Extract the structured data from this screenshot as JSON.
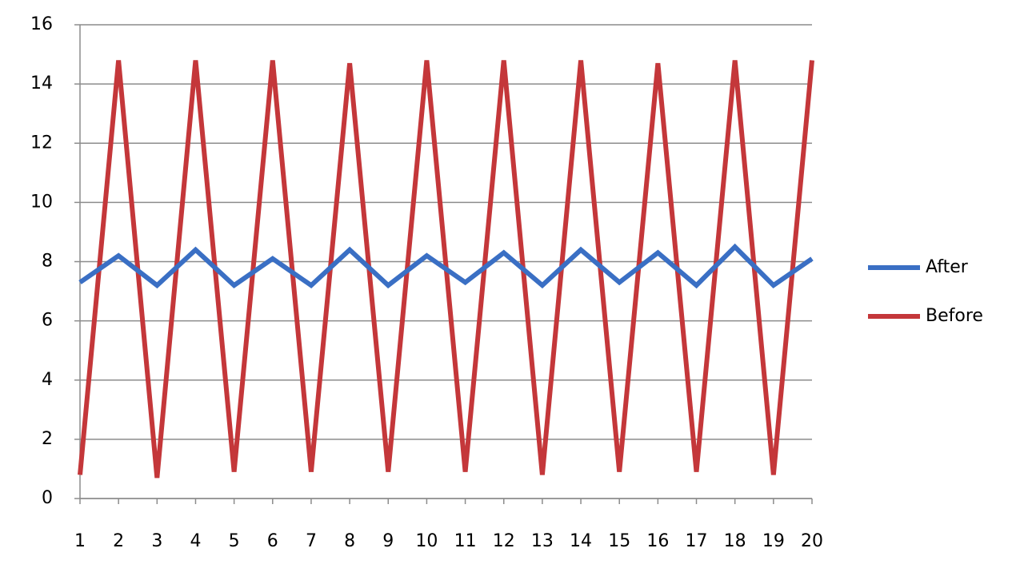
{
  "chart_data": {
    "type": "line",
    "x": [
      1,
      2,
      3,
      4,
      5,
      6,
      7,
      8,
      9,
      10,
      11,
      12,
      13,
      14,
      15,
      16,
      17,
      18,
      19,
      20
    ],
    "series": [
      {
        "name": "After",
        "color": "#3a6fc4",
        "values": [
          7.3,
          8.2,
          7.2,
          8.4,
          7.2,
          8.1,
          7.2,
          8.4,
          7.2,
          8.2,
          7.3,
          8.3,
          7.2,
          8.4,
          7.3,
          8.3,
          7.2,
          8.5,
          7.2,
          8.1
        ]
      },
      {
        "name": "Before",
        "color": "#c4373a",
        "values": [
          0.8,
          14.8,
          0.7,
          14.8,
          0.9,
          14.8,
          0.9,
          14.7,
          0.9,
          14.8,
          0.9,
          14.8,
          0.8,
          14.8,
          0.9,
          14.7,
          0.9,
          14.8,
          0.8,
          14.8
        ]
      }
    ],
    "xlim": [
      1,
      20
    ],
    "xticks": [
      1,
      2,
      3,
      4,
      5,
      6,
      7,
      8,
      9,
      10,
      11,
      12,
      13,
      14,
      15,
      16,
      17,
      18,
      19,
      20
    ],
    "ylim": [
      0,
      16
    ],
    "yticks": [
      0,
      2,
      4,
      6,
      8,
      10,
      12,
      14,
      16
    ],
    "grid": true,
    "legend": "right"
  }
}
